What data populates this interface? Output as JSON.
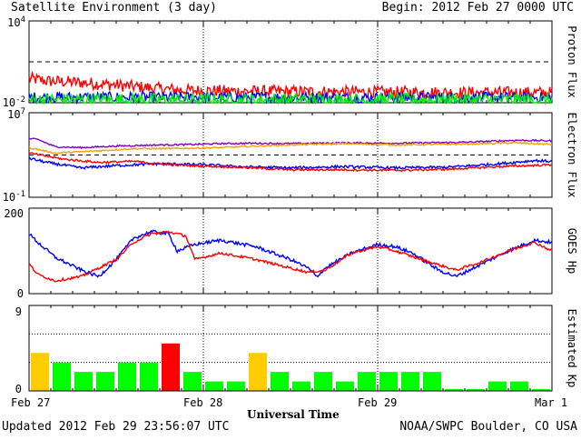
{
  "header": {
    "title": "Satellite Environment (3 day)",
    "begin": "Begin:  2012 Feb 27 0000 UTC"
  },
  "footer": {
    "updated": "Updated 2012 Feb 29 23:56:07 UTC",
    "credit": "NOAA/SWPC Boulder, CO USA"
  },
  "x_axis": {
    "label": "Universal Time",
    "ticks": [
      "Feb 27",
      "Feb 28",
      "Feb 29",
      "Mar 1"
    ]
  },
  "colors": {
    "red": "#ff0000",
    "blue": "#0000ff",
    "green": "#00ee00",
    "orange": "#ffa000",
    "purple": "#8000c0",
    "kp_green": "#00ff00",
    "kp_yellow": "#ffcc00",
    "kp_red": "#ff0000"
  },
  "chart_data": [
    {
      "type": "line",
      "name": "proton-flux-panel",
      "ylabel": "Proton Flux",
      "yscale": "log",
      "ylim": [
        0.01,
        10000
      ],
      "ytick_labels": {
        "top_base": "10",
        "top_exp": "4",
        "bottom_base": "10",
        "bottom_exp": "-2"
      },
      "threshold": 10,
      "x_days": [
        0,
        3
      ],
      "series": [
        {
          "color": "red",
          "noise": 0.9,
          "x": [
            0,
            0.1,
            0.3,
            0.5,
            0.7,
            0.9,
            1.2,
            1.6,
            2.0,
            2.5,
            3.0
          ],
          "y": [
            0.6,
            0.4,
            0.3,
            0.2,
            0.12,
            0.08,
            0.07,
            0.065,
            0.06,
            0.055,
            0.055
          ]
        },
        {
          "color": "blue",
          "noise": 0.8,
          "x": [
            0,
            1,
            2,
            3
          ],
          "y": [
            0.025,
            0.025,
            0.024,
            0.024
          ]
        },
        {
          "color": "green",
          "noise": 1.0,
          "x": [
            0,
            1,
            2,
            3
          ],
          "y": [
            0.016,
            0.016,
            0.016,
            0.016
          ]
        }
      ]
    },
    {
      "type": "line",
      "name": "electron-flux-panel",
      "ylabel": "Electron Flux",
      "yscale": "log",
      "ylim": [
        0.1,
        10000000
      ],
      "ytick_labels": {
        "top_base": "10",
        "top_exp": "7",
        "bottom_base": "10",
        "bottom_exp": "-1"
      },
      "threshold": 1000,
      "x_days": [
        0,
        3
      ],
      "series": [
        {
          "color": "purple",
          "noise": 0.15,
          "x": [
            0,
            0.05,
            0.15,
            0.3,
            0.5,
            0.75,
            0.95,
            1.1,
            1.3,
            1.5,
            1.8,
            2.1,
            2.5,
            2.8,
            3.0
          ],
          "y": [
            35000,
            30000,
            6000,
            5000,
            7000,
            9000,
            10000,
            12000,
            13000,
            12000,
            14000,
            13000,
            16000,
            25000,
            22000
          ]
        },
        {
          "color": "orange",
          "noise": 0.15,
          "x": [
            0,
            0.15,
            0.4,
            0.6,
            0.8,
            0.95,
            1.1,
            1.3,
            1.5,
            1.8,
            2.1,
            2.5,
            2.8,
            3.0
          ],
          "y": [
            5000,
            1500,
            2500,
            4000,
            4000,
            4500,
            5000,
            7000,
            9000,
            12000,
            9000,
            11000,
            14000,
            10000
          ]
        },
        {
          "color": "blue",
          "noise": 0.25,
          "x": [
            0,
            0.1,
            0.3,
            0.5,
            0.75,
            1.0,
            1.2,
            1.5,
            1.8,
            2.1,
            2.4,
            2.7,
            2.9,
            3.0
          ],
          "y": [
            500,
            200,
            60,
            100,
            150,
            120,
            80,
            60,
            80,
            60,
            70,
            150,
            300,
            250
          ]
        },
        {
          "color": "red",
          "noise": 0.2,
          "x": [
            0,
            0.2,
            0.4,
            0.6,
            0.8,
            1.0,
            1.2,
            1.5,
            1.8,
            2.1,
            2.4,
            2.7,
            3.0
          ],
          "y": [
            1500,
            400,
            200,
            250,
            120,
            90,
            70,
            40,
            40,
            35,
            45,
            80,
            120
          ]
        }
      ]
    },
    {
      "type": "line",
      "name": "goes-hp-panel",
      "ylabel": "GOES Hp",
      "yscale": "linear",
      "ylim": [
        0,
        200
      ],
      "ytick_labels": {
        "top": "200",
        "bottom": "0"
      },
      "x_days": [
        0,
        3
      ],
      "series": [
        {
          "color": "blue",
          "noise": 4,
          "x": [
            0,
            0.05,
            0.15,
            0.3,
            0.4,
            0.5,
            0.6,
            0.7,
            0.8,
            0.85,
            0.95,
            1.1,
            1.3,
            1.5,
            1.6,
            1.65,
            1.7,
            1.85,
            2.0,
            2.1,
            2.2,
            2.35,
            2.45,
            2.6,
            2.75,
            2.9,
            3.0
          ],
          "y": [
            140,
            120,
            85,
            55,
            40,
            80,
            130,
            145,
            140,
            100,
            115,
            125,
            110,
            80,
            60,
            40,
            60,
            95,
            115,
            110,
            95,
            55,
            40,
            70,
            100,
            125,
            120
          ]
        },
        {
          "color": "red",
          "noise": 3,
          "x": [
            0,
            0.05,
            0.15,
            0.3,
            0.5,
            0.6,
            0.7,
            0.8,
            0.9,
            0.95,
            1.1,
            1.3,
            1.5,
            1.6,
            1.7,
            1.85,
            2.0,
            2.1,
            2.25,
            2.45,
            2.6,
            2.75,
            2.9,
            3.0
          ],
          "y": [
            70,
            45,
            30,
            40,
            80,
            120,
            140,
            145,
            135,
            80,
            95,
            80,
            60,
            50,
            55,
            95,
            110,
            100,
            80,
            55,
            75,
            100,
            120,
            100
          ]
        }
      ]
    },
    {
      "type": "bar",
      "name": "estimated-kp-panel",
      "ylabel": "Estimated Kp",
      "ylim": [
        0,
        9
      ],
      "ytick_labels": {
        "top": "9",
        "bottom": "0"
      },
      "gridlines": [
        3,
        6
      ],
      "interval_hours": 3,
      "values": [
        4,
        3,
        2,
        2,
        3,
        3,
        5,
        2,
        1,
        1,
        4,
        2,
        1,
        2,
        1,
        2,
        2,
        2,
        2,
        0,
        0,
        1,
        1,
        0
      ],
      "bar_colors": [
        "kp_yellow",
        "kp_green",
        "kp_green",
        "kp_green",
        "kp_green",
        "kp_green",
        "kp_red",
        "kp_green",
        "kp_green",
        "kp_green",
        "kp_yellow",
        "kp_green",
        "kp_green",
        "kp_green",
        "kp_green",
        "kp_green",
        "kp_green",
        "kp_green",
        "kp_green",
        "kp_green",
        "kp_green",
        "kp_green",
        "kp_green",
        "kp_green"
      ]
    }
  ]
}
